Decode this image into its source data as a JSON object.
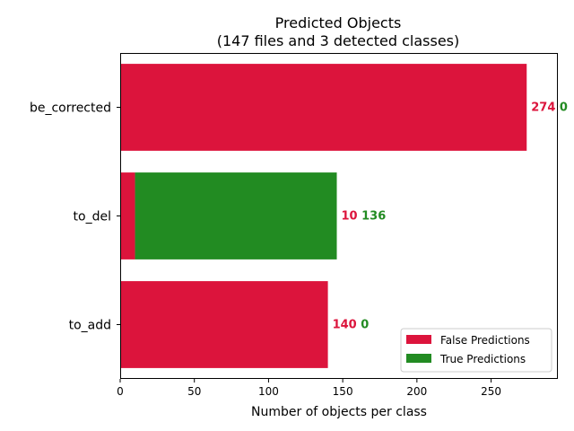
{
  "chart_data": {
    "type": "bar",
    "orientation": "horizontal",
    "stacked": true,
    "title_line1": "Predicted Objects",
    "title_line2": "(147 files and 3 detected classes)",
    "xlabel": "Number of objects per class",
    "ylabel": "",
    "xlim": [
      0,
      295
    ],
    "xticks": [
      0,
      50,
      100,
      150,
      200,
      250
    ],
    "categories": [
      "be_corrected",
      "to_del",
      "to_add"
    ],
    "series": [
      {
        "name": "False Predictions",
        "color": "#dc143c",
        "values": [
          274,
          10,
          140
        ]
      },
      {
        "name": "True Predictions",
        "color": "#228b22",
        "values": [
          0,
          136,
          0
        ]
      }
    ],
    "legend_position": "lower-right",
    "grid": false
  }
}
